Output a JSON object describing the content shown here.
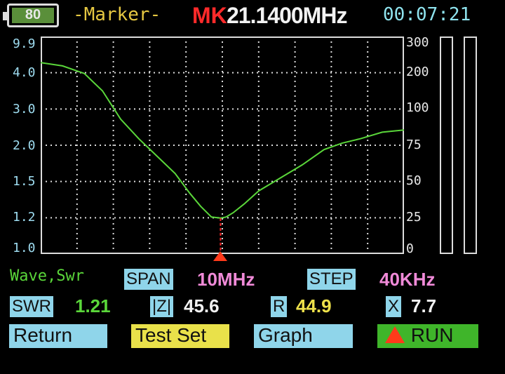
{
  "header": {
    "battery_level": "80",
    "mode_label": "-Marker-",
    "marker_prefix": "MK",
    "marker_freq": "21.1400MHz",
    "clock": "00:07:21"
  },
  "axes": {
    "left_ticks": [
      "9.9",
      "4.0",
      "3.0",
      "2.0",
      "1.5",
      "1.2",
      "1.0"
    ],
    "right_ticks": [
      "300",
      "200",
      "100",
      "75",
      "50",
      "25",
      "0"
    ]
  },
  "chart_data": {
    "type": "line",
    "series": [
      {
        "color": "#5ad63a",
        "x": [
          0.0,
          0.06,
          0.12,
          0.17,
          0.22,
          0.27,
          0.32,
          0.37,
          0.41,
          0.44,
          0.47,
          0.495,
          0.51,
          0.53,
          0.56,
          0.6,
          0.66,
          0.72,
          0.78,
          0.83,
          0.88,
          0.94,
          1.0
        ],
        "y": [
          0.12,
          0.135,
          0.17,
          0.25,
          0.38,
          0.47,
          0.55,
          0.63,
          0.72,
          0.78,
          0.83,
          0.835,
          0.83,
          0.81,
          0.77,
          0.71,
          0.65,
          0.59,
          0.52,
          0.49,
          0.47,
          0.44,
          0.43
        ]
      }
    ],
    "marker_x": 0.495,
    "grid": true
  },
  "footer": {
    "trace_label": "Wave,Swr",
    "span_label": "SPAN",
    "span_value": "10MHz",
    "step_label": "STEP",
    "step_value": "40KHz",
    "swr_label": "SWR",
    "swr_value": "1.21",
    "z_label": "|Z|",
    "z_value": "45.6",
    "r_label": "R",
    "r_value": "44.9",
    "x_label": "X",
    "x_value": "7.7"
  },
  "buttons": {
    "return": "Return",
    "test_set": "Test Set",
    "graph": "Graph",
    "run": "RUN"
  },
  "colors": {
    "accent_cyan": "#8fd5ea",
    "accent_yellow": "#e9e14a",
    "accent_green": "#3fb52a",
    "trace_green": "#5ad63a",
    "marker_red": "#ff2a2a"
  }
}
